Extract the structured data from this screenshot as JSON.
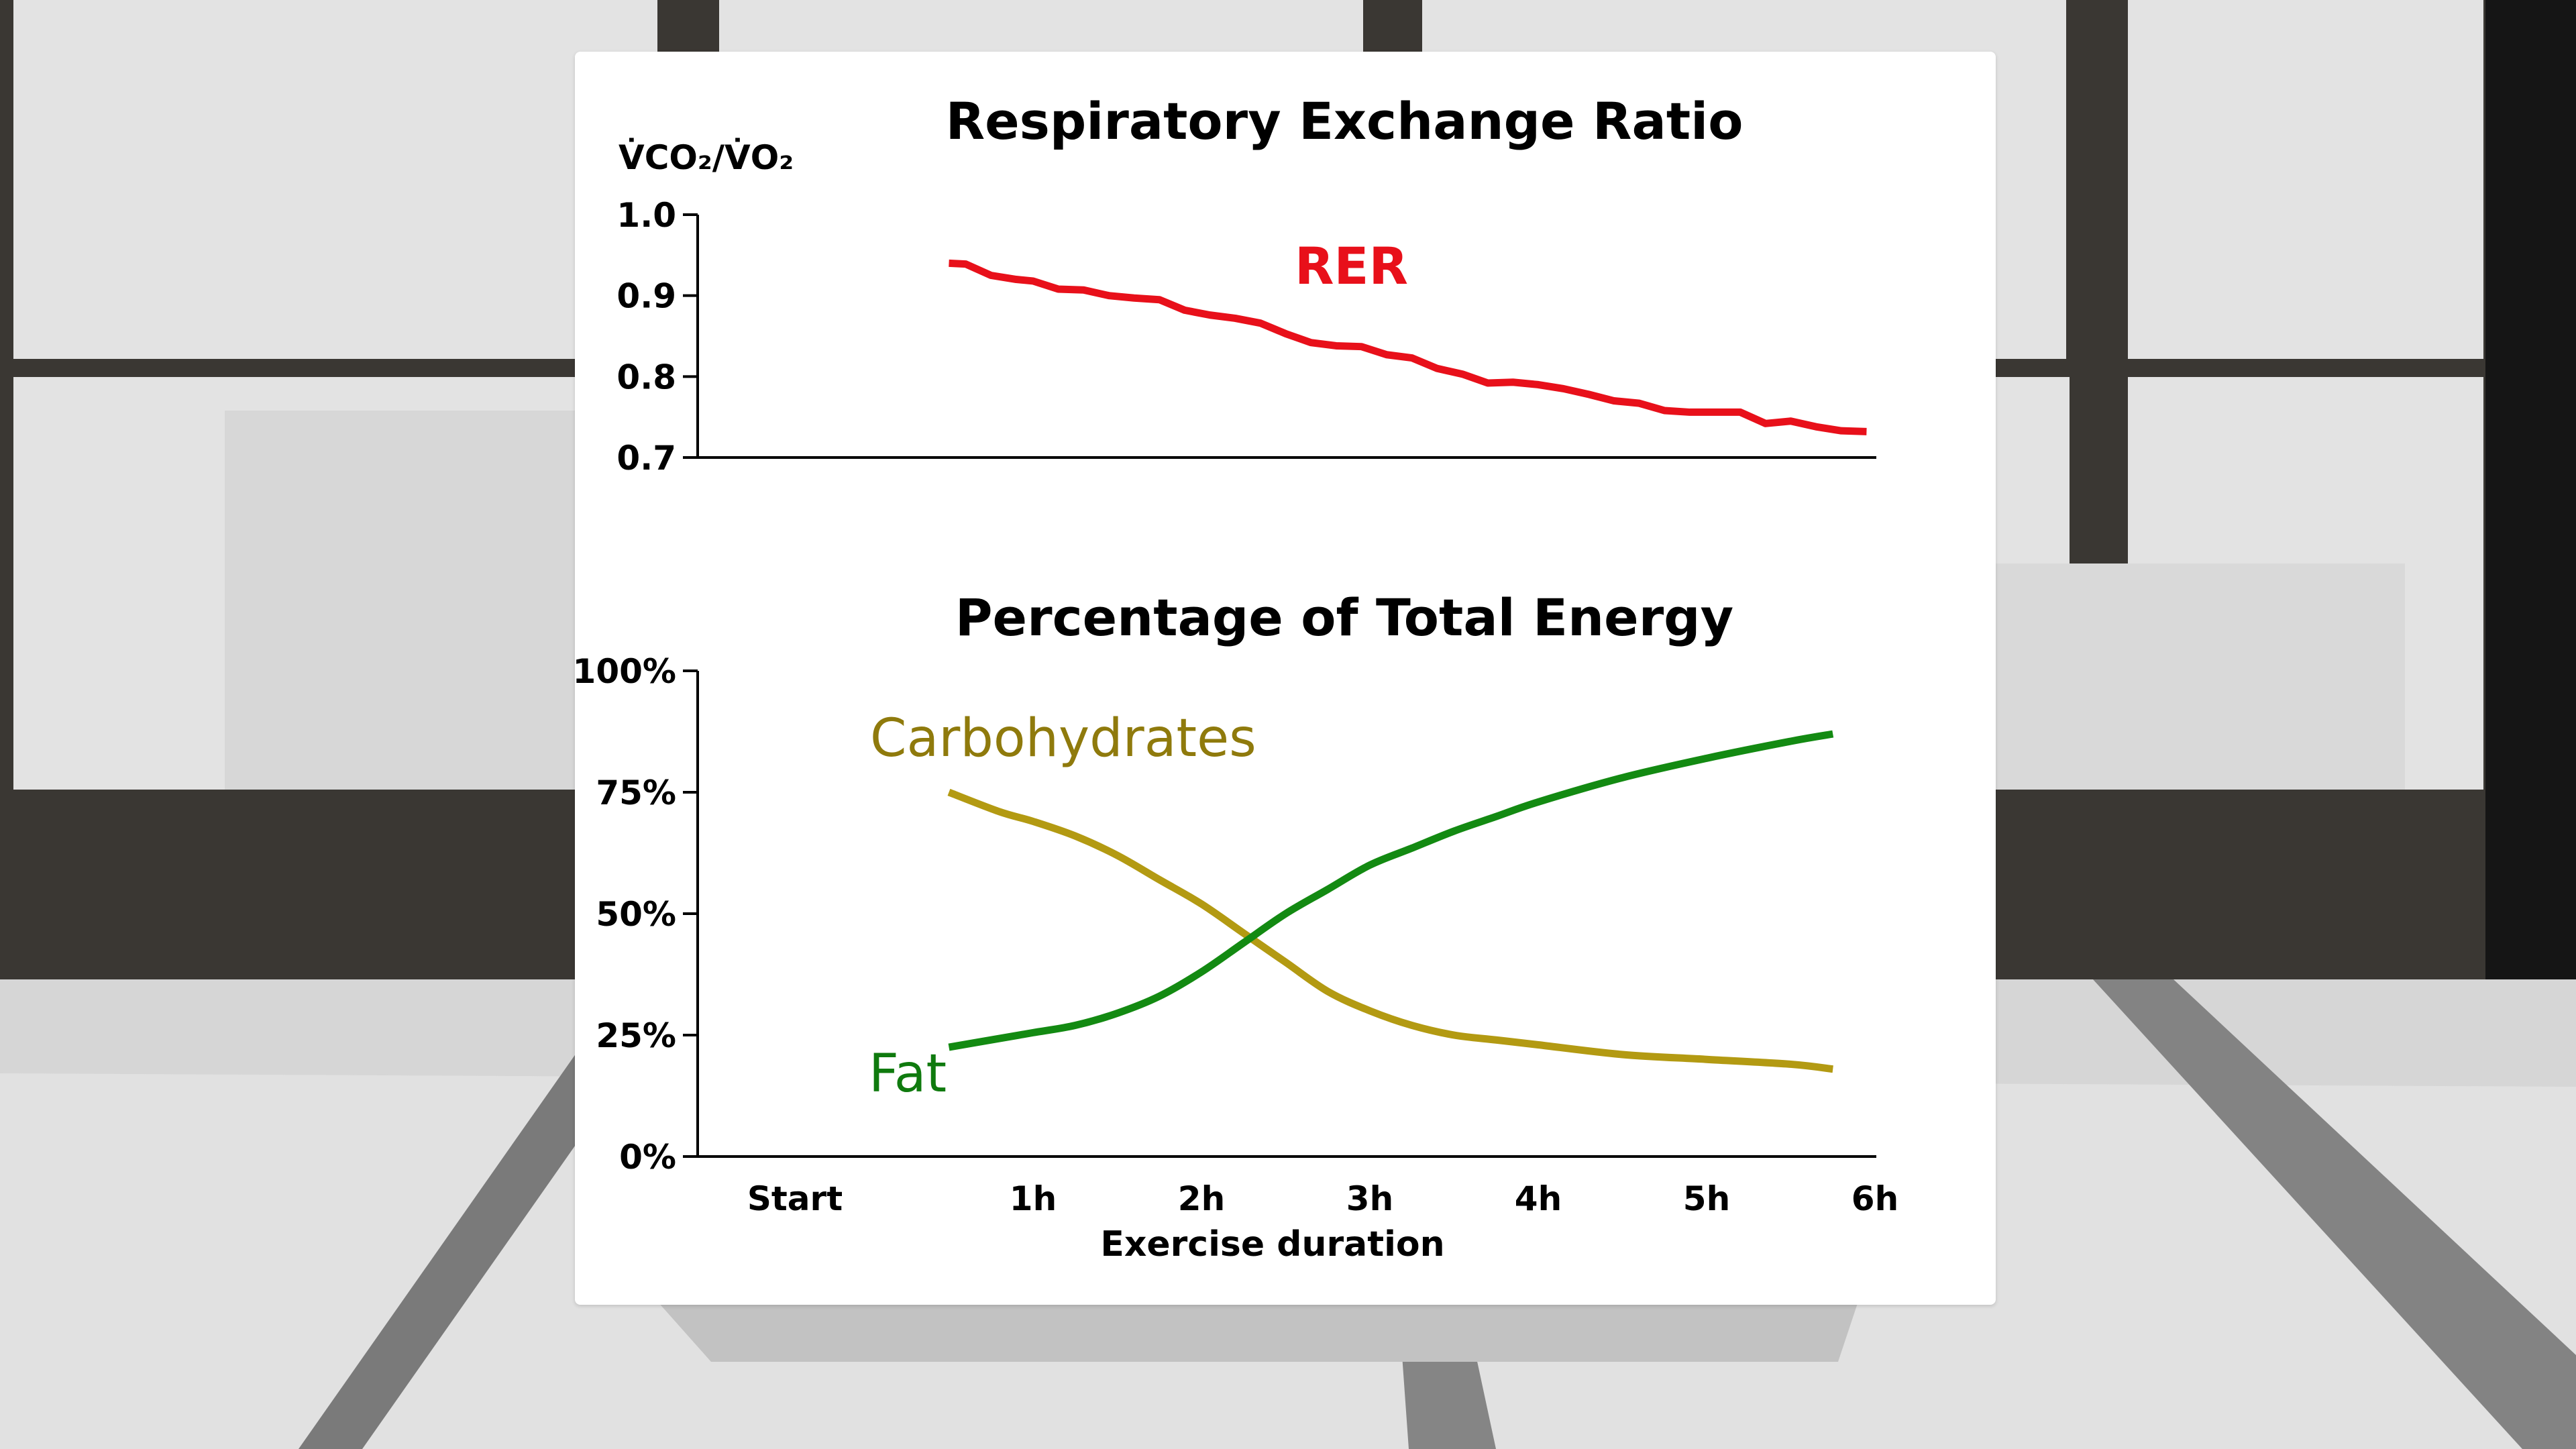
{
  "chart_data": [
    {
      "type": "line",
      "title": "Respiratory Exchange Ratio",
      "ylabel": "V̇CO₂/V̇O₂",
      "ylim": [
        0.7,
        1.0
      ],
      "yticks": [
        "1.0",
        "0.9",
        "0.8",
        "0.7"
      ],
      "grid": false,
      "series": [
        {
          "name": "RER",
          "color": "#e8101a",
          "x": [
            0.5,
            0.6,
            0.75,
            0.9,
            1.0,
            1.15,
            1.3,
            1.45,
            1.6,
            1.75,
            1.9,
            2.05,
            2.2,
            2.35,
            2.5,
            2.65,
            2.8,
            2.95,
            3.1,
            3.25,
            3.4,
            3.55,
            3.7,
            3.85,
            4.0,
            4.15,
            4.3,
            4.45,
            4.6,
            4.75,
            4.9,
            5.05,
            5.2,
            5.35,
            5.5,
            5.65,
            5.8,
            5.95
          ],
          "values": [
            0.94,
            0.939,
            0.925,
            0.92,
            0.918,
            0.908,
            0.907,
            0.9,
            0.897,
            0.895,
            0.882,
            0.876,
            0.872,
            0.866,
            0.853,
            0.842,
            0.838,
            0.837,
            0.827,
            0.823,
            0.81,
            0.803,
            0.792,
            0.793,
            0.79,
            0.785,
            0.778,
            0.77,
            0.767,
            0.758,
            0.756,
            0.756,
            0.756,
            0.742,
            0.745,
            0.738,
            0.733,
            0.732
          ]
        }
      ]
    },
    {
      "type": "line",
      "title": "Percentage of Total Energy",
      "xlabel": "Exercise duration",
      "ylabel": "",
      "ylim": [
        0,
        100
      ],
      "yticks": [
        "100%",
        "75%",
        "50%",
        "25%",
        "0%"
      ],
      "categories": [
        "Start",
        "1h",
        "2h",
        "3h",
        "4h",
        "5h",
        "6h"
      ],
      "grid": false,
      "series": [
        {
          "name": "Carbohydrates",
          "color": "#b39a12",
          "x": [
            0.5,
            0.8,
            1.0,
            1.25,
            1.5,
            1.75,
            2.0,
            2.25,
            2.5,
            2.75,
            3.0,
            3.25,
            3.5,
            3.75,
            4.0,
            4.5,
            5.0,
            5.5,
            5.75
          ],
          "values": [
            75,
            71,
            69,
            66,
            62,
            57,
            52,
            46,
            40,
            34,
            30,
            27,
            25,
            24,
            23,
            21,
            20,
            19,
            18
          ]
        },
        {
          "name": "Fat",
          "color": "#138a12",
          "x": [
            0.5,
            0.8,
            1.0,
            1.25,
            1.5,
            1.75,
            2.0,
            2.25,
            2.5,
            2.75,
            3.0,
            3.25,
            3.5,
            3.75,
            4.0,
            4.5,
            5.0,
            5.5,
            5.75
          ],
          "values": [
            22.5,
            24.3,
            25.5,
            27,
            29.5,
            33,
            38,
            44,
            50,
            55,
            60,
            63.5,
            67,
            70,
            73,
            78,
            82,
            85.5,
            87
          ]
        }
      ]
    }
  ]
}
